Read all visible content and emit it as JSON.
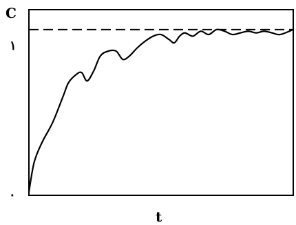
{
  "chart_data": {
    "type": "line",
    "title": "",
    "xlabel": "t",
    "ylabel": "C",
    "y_ticks": [
      "٠",
      "١"
    ],
    "reference_line": {
      "y": 1,
      "style": "dashed"
    },
    "xlim": [
      0,
      1
    ],
    "ylim": [
      0,
      1.12
    ],
    "grid": false,
    "series": [
      {
        "x": [
          0.0,
          0.02,
          0.05,
          0.09,
          0.13,
          0.15,
          0.18,
          0.2,
          0.22,
          0.245,
          0.27,
          0.3,
          0.33,
          0.355,
          0.38,
          0.41,
          0.44,
          0.47,
          0.5,
          0.53,
          0.55,
          0.57,
          0.59,
          0.62,
          0.65,
          0.68,
          0.71,
          0.74,
          0.77,
          0.8,
          0.83,
          0.86,
          0.89,
          0.92,
          0.95,
          1.0
        ],
        "y": [
          0.02,
          0.2,
          0.32,
          0.44,
          0.6,
          0.68,
          0.73,
          0.74,
          0.69,
          0.75,
          0.84,
          0.87,
          0.87,
          0.82,
          0.84,
          0.89,
          0.93,
          0.96,
          0.97,
          0.94,
          0.92,
          0.96,
          0.98,
          0.96,
          0.99,
          0.97,
          1.0,
          0.99,
          0.97,
          0.98,
          0.99,
          0.98,
          0.99,
          0.98,
          0.97,
          1.0
        ]
      }
    ]
  }
}
